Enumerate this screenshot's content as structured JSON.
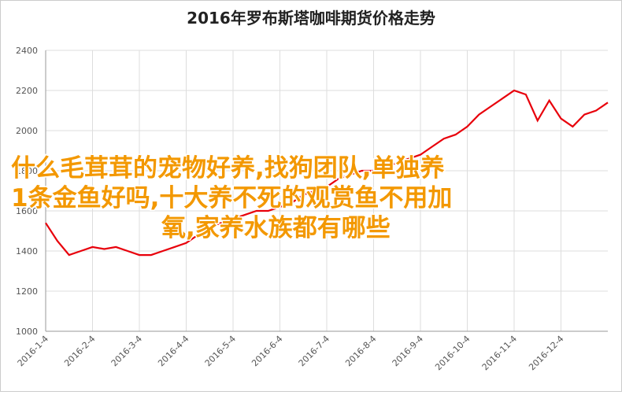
{
  "chart_data": {
    "type": "line",
    "title": "2016年罗布斯塔咖啡期货价格走势",
    "categories": [
      "2016-1-4",
      null,
      null,
      null,
      "2016-2-4",
      null,
      null,
      null,
      "2016-3-4",
      null,
      null,
      null,
      "2016-4-4",
      null,
      null,
      null,
      "2016-5-4",
      null,
      null,
      null,
      "2016-6-4",
      null,
      null,
      null,
      "2016-7-4",
      null,
      null,
      null,
      "2016-8-4",
      null,
      null,
      null,
      "2016-9-4",
      null,
      null,
      null,
      "2016-10-4",
      null,
      null,
      null,
      "2016-11-4",
      null,
      null,
      null,
      "2016-12-4",
      null,
      null,
      null,
      null
    ],
    "series": [
      {
        "color": "#e8000b",
        "values": [
          1540,
          1450,
          1380,
          1400,
          1420,
          1410,
          1420,
          1400,
          1380,
          1380,
          1400,
          1420,
          1440,
          1480,
          1520,
          1540,
          1560,
          1580,
          1600,
          1600,
          1620,
          1640,
          1680,
          1700,
          1720,
          1760,
          1780,
          1800,
          1800,
          1820,
          1840,
          1860,
          1880,
          1920,
          1960,
          1980,
          2020,
          2080,
          2120,
          2160,
          2200,
          2180,
          2050,
          2150,
          2060,
          2020,
          2080,
          2100,
          2140
        ]
      }
    ],
    "ylim": [
      1000,
      2400
    ],
    "yticks": [
      1000,
      1200,
      1400,
      1600,
      1800,
      2000,
      2200,
      2400
    ],
    "grid": true,
    "overlay_text": [
      "什么毛茸茸的宠物好养,找狗团队,单独养",
      "1条金鱼好吗,十大养不死的观赏鱼不用加",
      "氧,家养水族都有哪些"
    ]
  }
}
